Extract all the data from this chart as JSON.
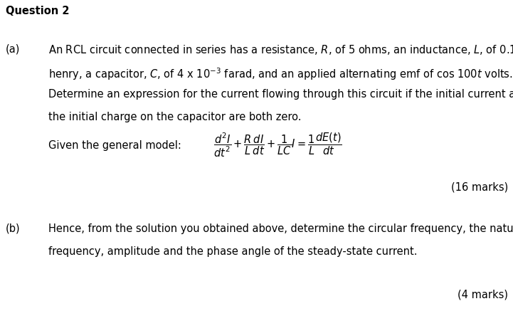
{
  "title": "Question 2",
  "part_a_label": "(a)",
  "part_a_line1": "An RCL circuit connected in series has a resistance, $R$, of 5 ohms, an inductance, $L$, of 0.1",
  "part_a_line2": "henry, a capacitor, $C$, of 4 x 10$^{-3}$ farad, and an applied alternating emf of cos 100$t$ volts.",
  "part_a_line3": "Determine an expression for the current flowing through this circuit if the initial current and",
  "part_a_line4": "the initial charge on the capacitor are both zero.",
  "given_label": "Given the general model: ",
  "formula": "$\\dfrac{d^2I}{dt^2}+\\dfrac{R}{L}\\dfrac{dI}{dt}+\\dfrac{1}{LC}I = \\dfrac{1}{L}\\dfrac{dE(t)}{dt}$",
  "marks_a": "(16 marks)",
  "part_b_label": "(b)",
  "part_b_line1": "Hence, from the solution you obtained above, determine the circular frequency, the natural",
  "part_b_line2": "frequency, amplitude and the phase angle of the steady-state current.",
  "marks_b": "(4 marks)",
  "text_color": "#000000",
  "bg_color": "#ffffff",
  "font_size": 10.5
}
